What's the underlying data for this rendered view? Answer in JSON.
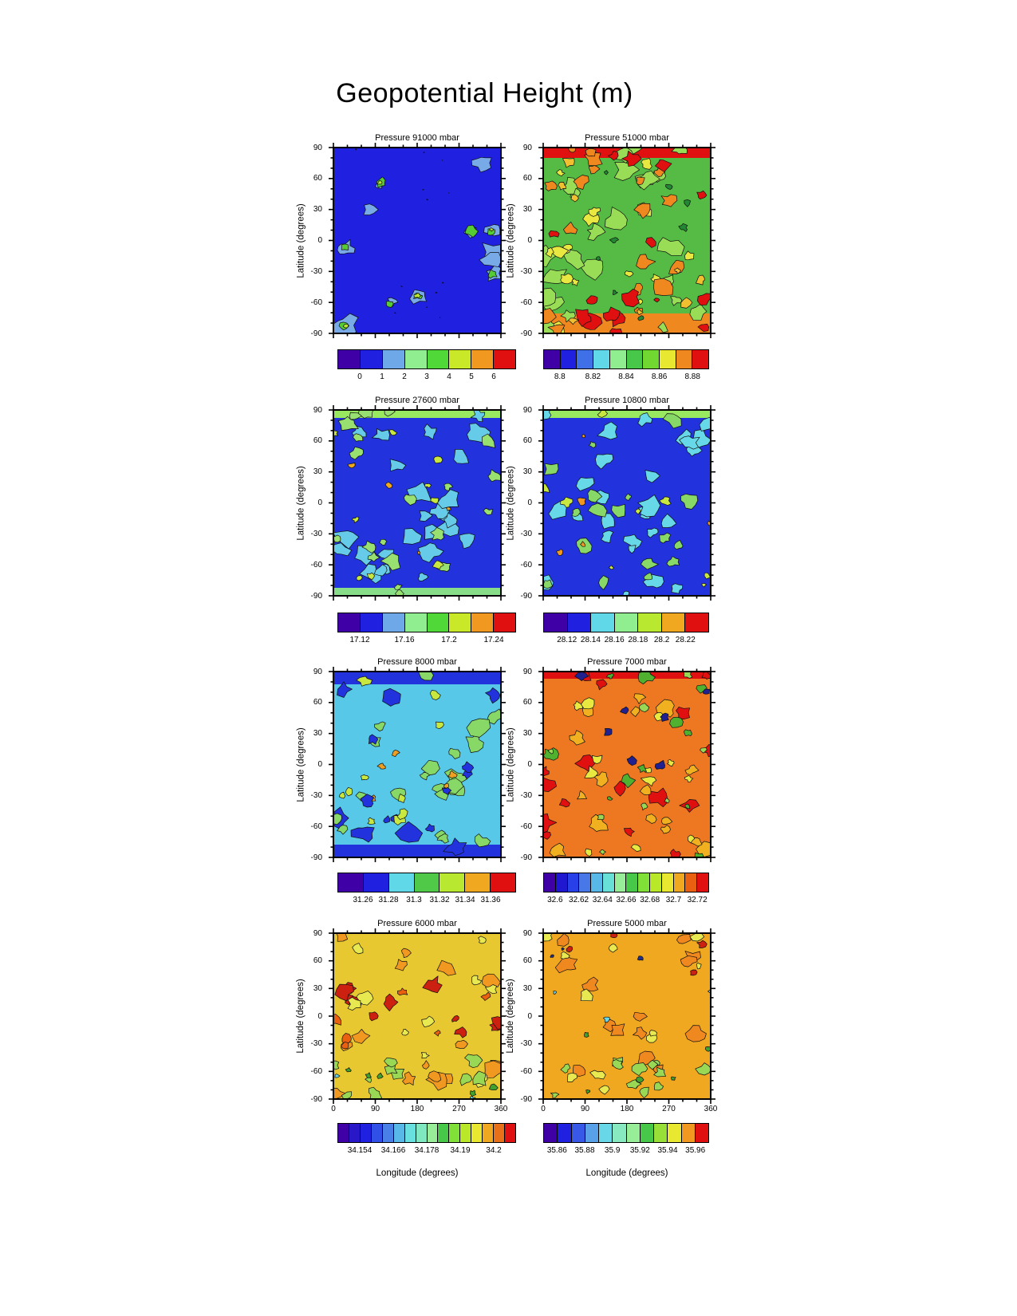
{
  "chart_data": {
    "type": "heatmap",
    "title": "Geopotential Height (m)",
    "xlabel": "Longitude (degrees)",
    "ylabel": "Latitude (degrees)",
    "layout": "4x2 grid of filled contour world maps, one per pressure level, each with a discrete rainbow colorbar below it; x axis 0-360 deg longitude, y axis -90 to 90 deg latitude; black contour lines over colored fills",
    "x_range": [
      0,
      360
    ],
    "y_range": [
      -90,
      90
    ],
    "x_tick_labels": [
      "0",
      "90",
      "180",
      "270",
      "360"
    ],
    "y_tick_labels": [
      "90",
      "60",
      "30",
      "0",
      "-30",
      "-60",
      "-90"
    ],
    "grid": false,
    "panels": [
      {
        "title": "Pressure 91000 mbar",
        "pressure_mbar": 91000,
        "summary": "nearly uniform low field: solid blue with small scattered island-like maxima (light blue rims, green/yellow-green cores)",
        "range_estimate": [
          -1,
          7
        ],
        "colorbar": {
          "tick_labels": [
            "0",
            "1",
            "2",
            "3",
            "4",
            "5",
            "6"
          ],
          "label_boundaries": [
            1,
            2,
            3,
            4,
            5,
            6,
            7
          ],
          "colors": [
            "#3f00a5",
            "#2020e0",
            "#6fa8e8",
            "#90ee90",
            "#50d838",
            "#c8e828",
            "#f09820",
            "#e01010"
          ]
        },
        "map": {
          "seed": 11,
          "base": "#2020e0",
          "bands": [],
          "layers": [
            {
              "color": "#78aae8",
              "count": 12,
              "radius": [
                5,
                16
              ],
              "region": "any",
              "nest": false
            },
            {
              "color": "#55cc33",
              "count": 8,
              "radius": [
                3,
                8
              ],
              "region": "any",
              "nest": true
            },
            {
              "color": "#b8e830",
              "count": 4,
              "radius": [
                2,
                4
              ],
              "region": "any",
              "nest": true
            },
            {
              "color": "#101010",
              "count": 12,
              "radius": [
                0.6,
                1.3
              ],
              "region": "any",
              "nest": false
            }
          ]
        }
      },
      {
        "title": "Pressure 51000 mbar",
        "pressure_mbar": 51000,
        "summary": "very mottled field: red band at top, red/orange at bottom, green-yellow-orange speckled mid-latitudes",
        "range_estimate": [
          8.79,
          8.89
        ],
        "colorbar": {
          "tick_labels": [
            "8.8",
            "8.82",
            "8.84",
            "8.86",
            "8.88"
          ],
          "label_boundaries": [
            1,
            3,
            5,
            7,
            9
          ],
          "colors": [
            "#3f00a5",
            "#2020e0",
            "#4070e8",
            "#60d8e8",
            "#90ee90",
            "#48c848",
            "#70d830",
            "#e8e830",
            "#f08820",
            "#e01010"
          ]
        },
        "map": {
          "seed": 22,
          "base": "#55bb44",
          "bands": [
            [
              0,
              13,
              "#e01010"
            ],
            [
              208,
              25,
              "#f08820"
            ]
          ],
          "layers": [
            {
              "color": "#98dd55",
              "count": 24,
              "radius": [
                6,
                16
              ],
              "region": "any",
              "nest": false
            },
            {
              "color": "#e8e840",
              "count": 16,
              "radius": [
                4,
                11
              ],
              "region": "any",
              "nest": false
            },
            {
              "color": "#f08820",
              "count": 18,
              "radius": [
                5,
                13
              ],
              "region": "any",
              "nest": false
            },
            {
              "color": "#e01010",
              "count": 10,
              "radius": [
                4,
                12
              ],
              "region": "topbottom",
              "nest": false
            },
            {
              "color": "#e01010",
              "count": 6,
              "radius": [
                3,
                9
              ],
              "region": "any",
              "nest": false
            },
            {
              "color": "#228833",
              "count": 8,
              "radius": [
                2,
                5
              ],
              "region": "any",
              "nest": false
            },
            {
              "color": "#f0c030",
              "count": 8,
              "radius": [
                3,
                8
              ],
              "region": "any",
              "nest": false
            }
          ]
        }
      },
      {
        "title": "Pressure 27600 mbar",
        "pressure_mbar": 27600,
        "summary": "blue background heavily mottled with cyan and pale green patches, greenish bands at top and bottom, few small orange spots",
        "range_estimate": [
          17.1,
          17.26
        ],
        "colorbar": {
          "tick_labels": [
            "17.12",
            "17.16",
            "17.2",
            "17.24"
          ],
          "label_boundaries": [
            1,
            3,
            5,
            7
          ],
          "colors": [
            "#3f00a5",
            "#2020e0",
            "#6fa8e8",
            "#90ee90",
            "#50d838",
            "#c8e828",
            "#f09820",
            "#e01010"
          ]
        },
        "map": {
          "seed": 33,
          "base": "#2233dd",
          "bands": [
            [
              0,
              10,
              "#98e860"
            ],
            [
              223,
              10,
              "#88dd88"
            ]
          ],
          "layers": [
            {
              "color": "#66cbe8",
              "count": 26,
              "radius": [
                5,
                14
              ],
              "region": "any",
              "nest": false
            },
            {
              "color": "#98e070",
              "count": 20,
              "radius": [
                4,
                12
              ],
              "region": "any",
              "nest": false
            },
            {
              "color": "#c8e840",
              "count": 9,
              "radius": [
                3,
                7
              ],
              "region": "any",
              "nest": false
            },
            {
              "color": "#f0a820",
              "count": 4,
              "radius": [
                2,
                5
              ],
              "region": "any",
              "nest": false
            }
          ]
        }
      },
      {
        "title": "Pressure 10800 mbar",
        "pressure_mbar": 10800,
        "summary": "blue background mottled with cyan and green patches, green band at top, scattered small orange maxima",
        "range_estimate": [
          28.1,
          28.24
        ],
        "colorbar": {
          "tick_labels": [
            "28.12",
            "28.14",
            "28.16",
            "28.18",
            "28.2",
            "28.22"
          ],
          "label_boundaries": [
            1,
            2,
            3,
            4,
            5,
            6
          ],
          "colors": [
            "#3f00a5",
            "#2020e0",
            "#60d8e8",
            "#90ee90",
            "#b8e830",
            "#f0a820",
            "#e01010"
          ]
        },
        "map": {
          "seed": 44,
          "base": "#2233dd",
          "bands": [
            [
              0,
              10,
              "#98e860"
            ]
          ],
          "layers": [
            {
              "color": "#66d8e8",
              "count": 26,
              "radius": [
                5,
                14
              ],
              "region": "any",
              "nest": false
            },
            {
              "color": "#88d868",
              "count": 17,
              "radius": [
                4,
                11
              ],
              "region": "any",
              "nest": false
            },
            {
              "color": "#c8e840",
              "count": 8,
              "radius": [
                3,
                7
              ],
              "region": "any",
              "nest": false
            },
            {
              "color": "#f09820",
              "count": 5,
              "radius": [
                2,
                6
              ],
              "region": "any",
              "nest": false
            }
          ]
        }
      },
      {
        "title": "Pressure 8000 mbar",
        "pressure_mbar": 8000,
        "summary": "cyan background with green mottling, blue bands along top and bottom edges, a few orange patches near the equator",
        "range_estimate": [
          31.24,
          31.38
        ],
        "colorbar": {
          "tick_labels": [
            "31.26",
            "31.28",
            "31.3",
            "31.32",
            "31.34",
            "31.36"
          ],
          "label_boundaries": [
            1,
            2,
            3,
            4,
            5,
            6
          ],
          "colors": [
            "#3f00a5",
            "#2020e0",
            "#60d8e8",
            "#50c848",
            "#b8e830",
            "#f0a820",
            "#e01010"
          ]
        },
        "map": {
          "seed": 55,
          "base": "#58c8e8",
          "bands": [
            [
              0,
              16,
              "#2233dd"
            ],
            [
              217,
              16,
              "#2233dd"
            ]
          ],
          "layers": [
            {
              "color": "#2233dd",
              "count": 10,
              "radius": [
                5,
                14
              ],
              "region": "topbottom",
              "nest": false
            },
            {
              "color": "#88d868",
              "count": 22,
              "radius": [
                5,
                13
              ],
              "region": "any",
              "nest": false
            },
            {
              "color": "#c8e840",
              "count": 10,
              "radius": [
                3,
                8
              ],
              "region": "any",
              "nest": false
            },
            {
              "color": "#f0a020",
              "count": 5,
              "radius": [
                3,
                7
              ],
              "region": "mid",
              "nest": false
            },
            {
              "color": "#2233dd",
              "count": 5,
              "radius": [
                4,
                9
              ],
              "region": "mid",
              "nest": false
            }
          ]
        }
      },
      {
        "title": "Pressure 7000 mbar",
        "pressure_mbar": 7000,
        "summary": "orange/red dominated mottled field with yellow and green patches and deep navy-blue minima near 60N and the equator; red band at top",
        "range_estimate": [
          32.59,
          32.73
        ],
        "colorbar": {
          "tick_labels": [
            "32.6",
            "32.62",
            "32.64",
            "32.66",
            "32.68",
            "32.7",
            "32.72"
          ],
          "label_boundaries": [
            1,
            3,
            5,
            7,
            9,
            11,
            13
          ],
          "colors": [
            "#3f00a5",
            "#2018d0",
            "#2840e8",
            "#4878e8",
            "#58b8e8",
            "#68e0d8",
            "#98ee98",
            "#48c848",
            "#80e038",
            "#b8e828",
            "#e8e830",
            "#f0a820",
            "#e86010",
            "#e01010"
          ]
        },
        "map": {
          "seed": 66,
          "base": "#ee7722",
          "bands": [
            [
              0,
              9,
              "#e01010"
            ]
          ],
          "layers": [
            {
              "color": "#e01010",
              "count": 16,
              "radius": [
                5,
                14
              ],
              "region": "any",
              "nest": false
            },
            {
              "color": "#f0b020",
              "count": 16,
              "radius": [
                5,
                12
              ],
              "region": "any",
              "nest": false
            },
            {
              "color": "#e8e840",
              "count": 12,
              "radius": [
                4,
                10
              ],
              "region": "any",
              "nest": false
            },
            {
              "color": "#50b030",
              "count": 12,
              "radius": [
                3,
                9
              ],
              "region": "any",
              "nest": false
            },
            {
              "color": "#98d855",
              "count": 8,
              "radius": [
                3,
                7
              ],
              "region": "any",
              "nest": false
            },
            {
              "color": "#202090",
              "count": 7,
              "radius": [
                3,
                8
              ],
              "region": "tophalf",
              "nest": false
            }
          ]
        }
      },
      {
        "title": "Pressure 6000 mbar",
        "pressure_mbar": 6000,
        "summary": "yellow/amber field with a large red maximum band between 30N and 30S, green patches toward the south pole",
        "range_estimate": [
          34.146,
          34.21
        ],
        "colorbar": {
          "tick_labels": [
            "34.154",
            "34.166",
            "34.178",
            "34.19",
            "34.2"
          ],
          "label_boundaries": [
            2,
            5,
            8,
            11,
            14
          ],
          "colors": [
            "#3f00a5",
            "#2818c8",
            "#2020e0",
            "#3050e8",
            "#4880e8",
            "#58b8e8",
            "#68e0e0",
            "#80e8c0",
            "#98ee98",
            "#48c848",
            "#80e038",
            "#b8e828",
            "#e8e830",
            "#f0a820",
            "#e87018",
            "#e01010"
          ]
        },
        "map": {
          "seed": 77,
          "base": "#e8c830",
          "bands": [],
          "layers": [
            {
              "color": "#f09820",
              "count": 16,
              "radius": [
                5,
                13
              ],
              "region": "any",
              "nest": false
            },
            {
              "color": "#cc2010",
              "count": 11,
              "radius": [
                4,
                11
              ],
              "region": "mid",
              "nest": false
            },
            {
              "color": "#e8e850",
              "count": 10,
              "radius": [
                4,
                10
              ],
              "region": "any",
              "nest": false
            },
            {
              "color": "#98d855",
              "count": 10,
              "radius": [
                4,
                10
              ],
              "region": "bottom",
              "nest": false
            },
            {
              "color": "#40a030",
              "count": 5,
              "radius": [
                2,
                5
              ],
              "region": "bottom",
              "nest": false
            },
            {
              "color": "#e86010",
              "count": 6,
              "radius": [
                3,
                8
              ],
              "region": "mid",
              "nest": false
            },
            {
              "color": "#68d8e8",
              "count": 2,
              "radius": [
                2,
                4
              ],
              "region": "bottom",
              "nest": false
            }
          ]
        }
      },
      {
        "title": "Pressure 5000 mbar",
        "pressure_mbar": 5000,
        "summary": "amber/orange field with yellow and green mottling, green patches in the south, small red and navy spots near the north edge",
        "range_estimate": [
          35.85,
          35.97
        ],
        "colorbar": {
          "tick_labels": [
            "35.86",
            "35.88",
            "35.9",
            "35.92",
            "35.94",
            "35.96"
          ],
          "label_boundaries": [
            1,
            3,
            5,
            7,
            9,
            11
          ],
          "colors": [
            "#3f00a5",
            "#2020e0",
            "#3858e8",
            "#58a0e8",
            "#68d8e8",
            "#88e8c0",
            "#98ee98",
            "#48c848",
            "#98e038",
            "#e8e830",
            "#f09820",
            "#e01010"
          ]
        },
        "map": {
          "seed": 88,
          "base": "#f0a820",
          "bands": [],
          "layers": [
            {
              "color": "#f08820",
              "count": 14,
              "radius": [
                5,
                13
              ],
              "region": "any",
              "nest": false
            },
            {
              "color": "#e8e850",
              "count": 12,
              "radius": [
                4,
                10
              ],
              "region": "any",
              "nest": false
            },
            {
              "color": "#98d855",
              "count": 12,
              "radius": [
                4,
                10
              ],
              "region": "bottom",
              "nest": false
            },
            {
              "color": "#40a030",
              "count": 5,
              "radius": [
                2,
                5
              ],
              "region": "any",
              "nest": false
            },
            {
              "color": "#cc2010",
              "count": 4,
              "radius": [
                3,
                6
              ],
              "region": "top",
              "nest": false
            },
            {
              "color": "#203090",
              "count": 3,
              "radius": [
                2,
                4
              ],
              "region": "top",
              "nest": false
            },
            {
              "color": "#68d8e8",
              "count": 3,
              "radius": [
                2,
                4
              ],
              "region": "tophalf",
              "nest": false
            }
          ]
        }
      }
    ]
  }
}
